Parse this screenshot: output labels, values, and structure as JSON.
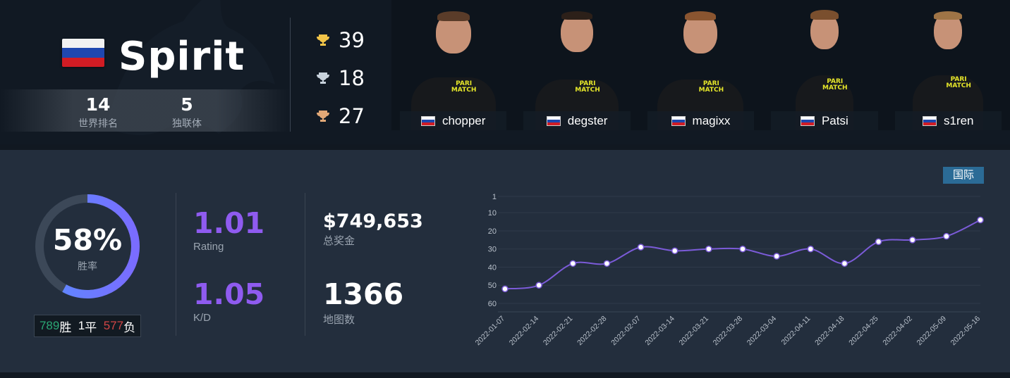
{
  "team": {
    "name": "Spirit",
    "flag_colors": [
      "#f2f2f2",
      "#1f47b0",
      "#d11c24"
    ],
    "world_rank": "14",
    "world_rank_label": "世界排名",
    "cis_rank": "5",
    "cis_rank_label": "独联体"
  },
  "trophies": [
    {
      "icon": "gold-trophy-icon",
      "color": "#f2c448",
      "count": "39"
    },
    {
      "icon": "silver-trophy-icon",
      "color": "#c8d2dc",
      "count": "18"
    },
    {
      "icon": "bronze-trophy-icon",
      "color": "#e2a877",
      "count": "27"
    }
  ],
  "players": [
    {
      "name": "chopper",
      "hair": "#5a3c29"
    },
    {
      "name": "degster",
      "hair": "#2c2019"
    },
    {
      "name": "magixx",
      "hair": "#8a5530"
    },
    {
      "name": "Patsi",
      "hair": "#7a4f2e"
    },
    {
      "name": "s1ren",
      "hair": "#9e7446"
    }
  ],
  "sponsor_text": [
    "PARI",
    "MATCH"
  ],
  "region_tag": "国际",
  "win_rate": {
    "percent_text": "58%",
    "value": 0.58,
    "label": "胜率",
    "wins": "789",
    "wins_label": "胜",
    "draws": "1",
    "draws_label": "平",
    "losses": "577",
    "losses_label": "负"
  },
  "metrics": {
    "rating": "1.01",
    "rating_label": "Rating",
    "kd": "1.05",
    "kd_label": "K/D",
    "prize": "$749,653",
    "prize_label": "总奖金",
    "maps": "1366",
    "maps_label": "地图数"
  },
  "chart_data": {
    "type": "line",
    "title": "",
    "xlabel": "",
    "ylabel": "",
    "y_inverted": true,
    "ylim": [
      1,
      60
    ],
    "y_ticks": [
      1,
      10,
      20,
      30,
      40,
      50,
      60
    ],
    "x": [
      "2022-01-07",
      "2022-02-14",
      "2022-02-21",
      "2022-02-28",
      "2022-02-07",
      "2022-03-14",
      "2022-03-21",
      "2022-03-28",
      "2022-03-04",
      "2022-04-11",
      "2022-04-18",
      "2022-04-25",
      "2022-04-02",
      "2022-05-09",
      "2022-05-16"
    ],
    "series": [
      {
        "values": [
          52,
          50,
          38,
          38,
          29,
          31,
          30,
          30,
          34,
          30,
          38,
          26,
          25,
          23,
          14
        ]
      }
    ],
    "line_color": "#7b5bd8",
    "grid": true
  }
}
